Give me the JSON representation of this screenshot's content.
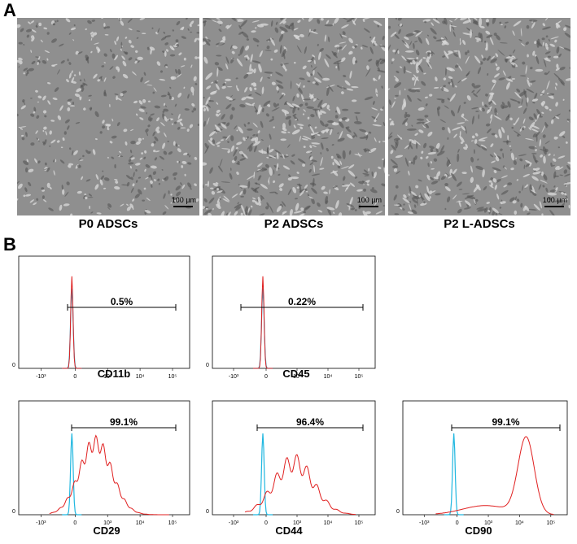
{
  "panel_a": {
    "letter": "A",
    "images": [
      {
        "caption": "P0 ADSCs",
        "scale": "100 µm"
      },
      {
        "caption": "P2 ADSCs",
        "scale": "100 µm"
      },
      {
        "caption": "P2 L-ADSCs",
        "scale": "100 µm"
      }
    ]
  },
  "panel_b": {
    "letter": "B",
    "colors": {
      "control": "#1fb7e0",
      "sample": "#e01f1f"
    },
    "x_tick_labels": [
      "-10³",
      "0",
      "10³",
      "10⁴",
      "10⁵"
    ],
    "y_tick_label": "0",
    "plots": [
      {
        "marker": "CD11b",
        "percent": "0.5%"
      },
      {
        "marker": "CD45",
        "percent": "0.22%"
      },
      {
        "marker": "CD29",
        "percent": "99.1%"
      },
      {
        "marker": "CD44",
        "percent": "96.4%"
      },
      {
        "marker": "CD90",
        "percent": "99.1%"
      }
    ]
  }
}
